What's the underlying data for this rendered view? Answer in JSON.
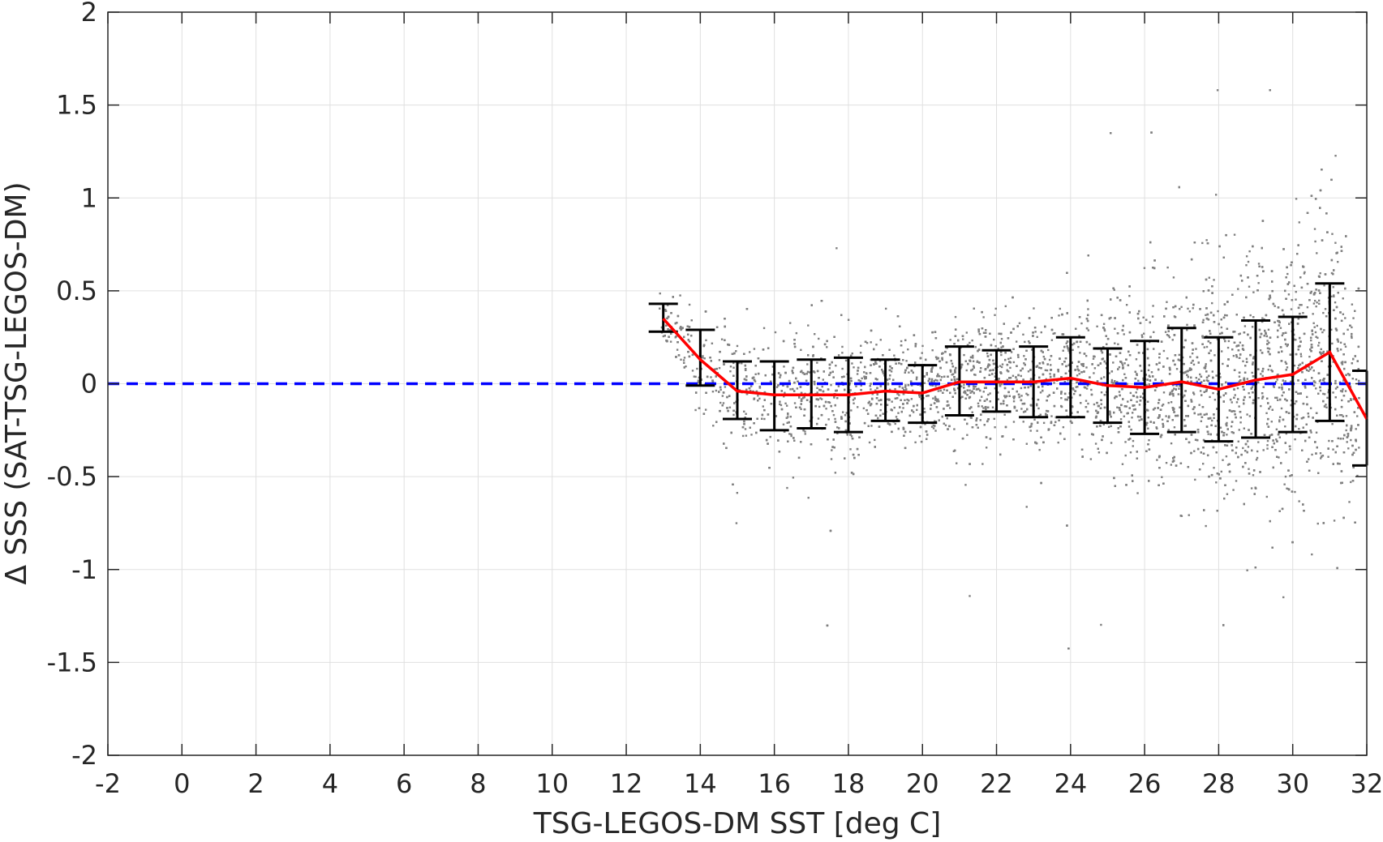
{
  "chart_data": {
    "type": "scatter",
    "xlabel": "TSG-LEGOS-DM SST [deg C]",
    "ylabel": "Δ SSS (SAT-TSG-LEGOS-DM)",
    "xlim": [
      -2,
      32
    ],
    "ylim": [
      -2,
      2
    ],
    "xticks": [
      -2,
      0,
      2,
      4,
      6,
      8,
      10,
      12,
      14,
      16,
      18,
      20,
      22,
      24,
      26,
      28,
      30,
      32
    ],
    "yticks": [
      2,
      1.5,
      1,
      0.5,
      0,
      -0.5,
      -1,
      -1.5,
      -2
    ],
    "xtick_labels": [
      "-2",
      "0",
      "2",
      "4",
      "6",
      "8",
      "10",
      "12",
      "14",
      "16",
      "18",
      "20",
      "22",
      "24",
      "26",
      "28",
      "30",
      "32"
    ],
    "ytick_labels": [
      "2",
      "1.5",
      "1",
      "0.5",
      "0",
      "-0.5",
      "-1",
      "-1.5",
      "-2"
    ],
    "grid": true,
    "colors": {
      "scatter": "#808080",
      "mean_line": "#ff0000",
      "error_bars": "#000000",
      "zero_line": "#0000ff",
      "grid": "#e0e0e0",
      "axes": "#262626"
    },
    "reference_line": {
      "y": 0,
      "style": "dashed",
      "color": "#0000ff"
    },
    "series": [
      {
        "type": "line_with_errorbars",
        "x": [
          13,
          14,
          15,
          16,
          17,
          18,
          19,
          20,
          21,
          22,
          23,
          24,
          25,
          26,
          27,
          28,
          29,
          30,
          31,
          32
        ],
        "mean": [
          0.35,
          0.13,
          -0.04,
          -0.06,
          -0.06,
          -0.06,
          -0.04,
          -0.05,
          0.01,
          0.01,
          0.01,
          0.03,
          -0.01,
          -0.02,
          0.01,
          -0.03,
          0.02,
          0.05,
          0.17,
          -0.19
        ],
        "low": [
          0.28,
          -0.01,
          -0.19,
          -0.25,
          -0.24,
          -0.26,
          -0.2,
          -0.21,
          -0.17,
          -0.15,
          -0.18,
          -0.18,
          -0.21,
          -0.27,
          -0.26,
          -0.31,
          -0.29,
          -0.26,
          -0.2,
          -0.44
        ],
        "high": [
          0.43,
          0.29,
          0.12,
          0.12,
          0.13,
          0.14,
          0.13,
          0.1,
          0.2,
          0.18,
          0.2,
          0.25,
          0.19,
          0.23,
          0.3,
          0.25,
          0.34,
          0.36,
          0.54,
          0.07
        ]
      }
    ]
  }
}
